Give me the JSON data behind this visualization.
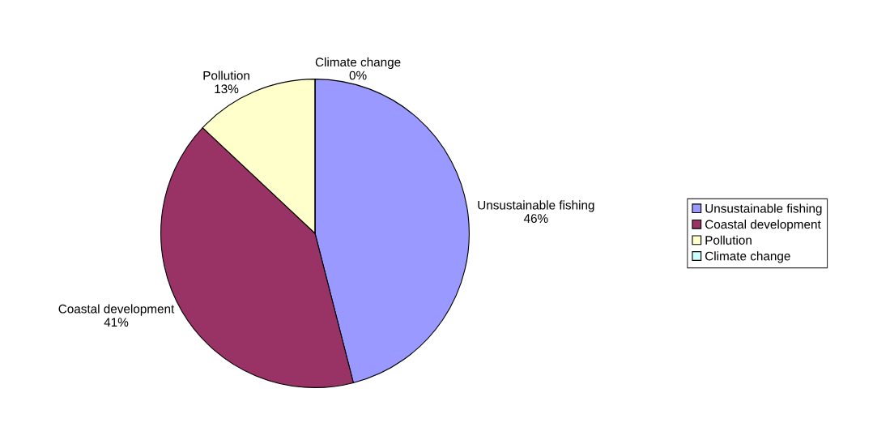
{
  "chart_data": {
    "type": "pie",
    "categories": [
      "Unsustainable fishing",
      "Coastal development",
      "Pollution",
      "Climate change"
    ],
    "values": [
      46,
      41,
      13,
      0
    ],
    "value_labels": [
      "46%",
      "41%",
      "13%",
      "0%"
    ],
    "colors": [
      "#9999ff",
      "#993366",
      "#ffffcc",
      "#ccffff"
    ],
    "legend": "right"
  }
}
